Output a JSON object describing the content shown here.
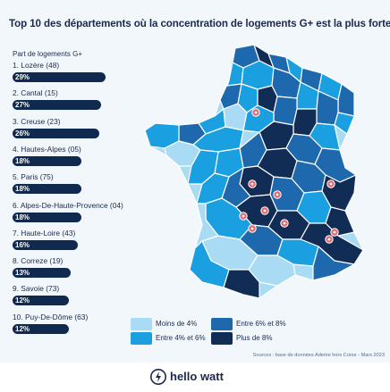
{
  "title": "Top 10 des départements où la concentration de logements G+ est la plus forte",
  "ranking": {
    "header": "Part de logements G+",
    "items": [
      {
        "label": "1.  Lozère (48)",
        "value": "29%",
        "pct": 29
      },
      {
        "label": "2.  Cantal (15)",
        "value": "27%",
        "pct": 27
      },
      {
        "label": "3.  Creuse (23)",
        "value": "26%",
        "pct": 26
      },
      {
        "label": "4.  Hautes-Alpes (05)",
        "value": "18%",
        "pct": 18
      },
      {
        "label": "5.  Paris (75)",
        "value": "18%",
        "pct": 18
      },
      {
        "label": "6.  Alpes-De-Haute-Provence (04)",
        "value": "18%",
        "pct": 18
      },
      {
        "label": "7.  Haute-Loire (43)",
        "value": "16%",
        "pct": 16
      },
      {
        "label": "8.  Correze (19)",
        "value": "13%",
        "pct": 13
      },
      {
        "label": "9.  Savoie (73)",
        "value": "12%",
        "pct": 12
      },
      {
        "label": "10.  Puy-De-Dôme (63)",
        "value": "12%",
        "pct": 12
      }
    ]
  },
  "legend": [
    {
      "label": "Moins de 4%",
      "color": "#a9dcf4"
    },
    {
      "label": "Entre 4% et 6%",
      "color": "#1aa0e0"
    },
    {
      "label": "Entre 6% et 8%",
      "color": "#1e69ad"
    },
    {
      "label": "Plus de 8%",
      "color": "#112c55"
    }
  ],
  "colors": {
    "pill": "#10294f",
    "marker": "#e36b72",
    "border": "#ffffff"
  },
  "source": "Sources : base de données Ademe hors Corse - Mars 2023",
  "brand": "hello watt",
  "map_icons": "location-pin-icon"
}
